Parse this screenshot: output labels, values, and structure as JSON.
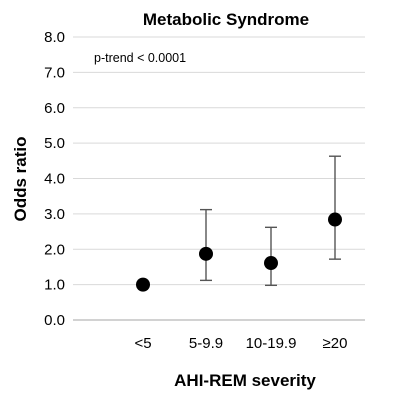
{
  "chart_data": {
    "type": "scatter",
    "title": "Metabolic Syndrome",
    "xlabel": "AHI-REM severity",
    "ylabel": "Odds ratio",
    "annotation": "p-trend < 0.0001",
    "categories": [
      "<5",
      "5-9.9",
      "10-19.9",
      "≥20"
    ],
    "values": [
      1.0,
      1.87,
      1.61,
      2.84
    ],
    "ci_lower": [
      1.0,
      1.12,
      0.98,
      1.72
    ],
    "ci_upper": [
      1.0,
      3.12,
      2.62,
      4.63
    ],
    "ylim": [
      0,
      8
    ],
    "yticks": [
      "0.0",
      "1.0",
      "2.0",
      "3.0",
      "4.0",
      "5.0",
      "6.0",
      "7.0",
      "8.0"
    ],
    "grid": true,
    "colors": {
      "marker": "#000000",
      "errorbar": "#555555",
      "grid": "#d9d9d9",
      "axis": "#a6a6a6"
    }
  }
}
